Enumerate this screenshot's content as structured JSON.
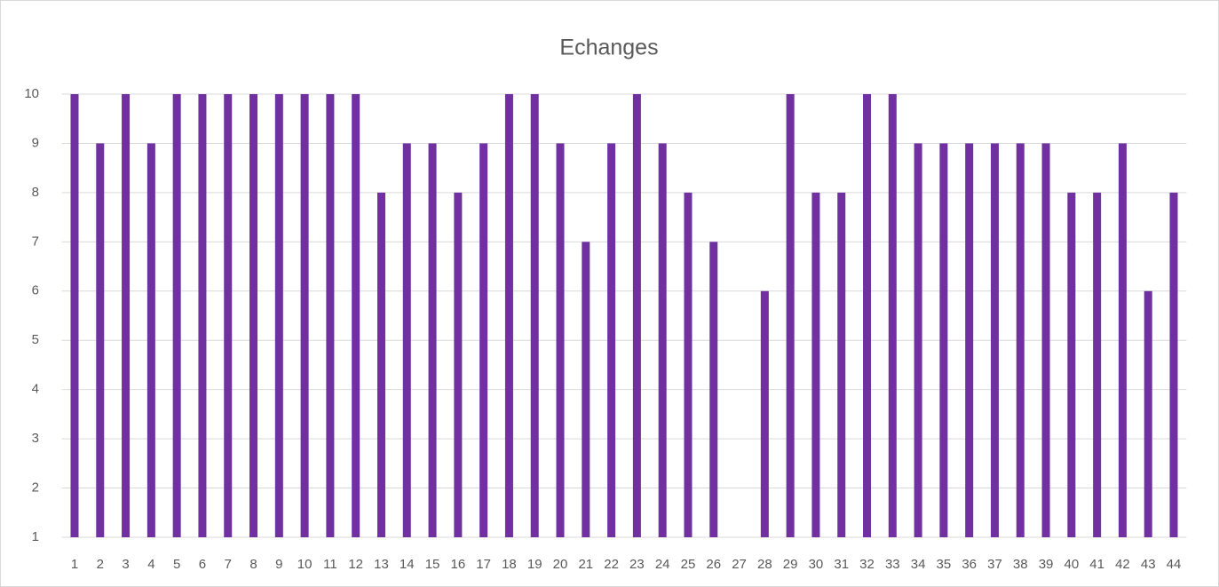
{
  "chart_data": {
    "type": "bar",
    "title": "Echanges",
    "categories": [
      1,
      2,
      3,
      4,
      5,
      6,
      7,
      8,
      9,
      10,
      11,
      12,
      13,
      14,
      15,
      16,
      17,
      18,
      19,
      20,
      21,
      22,
      23,
      24,
      25,
      26,
      27,
      28,
      29,
      30,
      31,
      32,
      33,
      34,
      35,
      36,
      37,
      38,
      39,
      40,
      41,
      42,
      43,
      44
    ],
    "values": [
      10,
      9,
      10,
      9,
      10,
      10,
      10,
      10,
      10,
      10,
      10,
      10,
      8,
      9,
      9,
      8,
      9,
      10,
      10,
      9,
      7,
      9,
      10,
      9,
      8,
      7,
      null,
      6,
      10,
      8,
      8,
      10,
      10,
      9,
      9,
      9,
      9,
      9,
      9,
      8,
      8,
      9,
      6,
      8
    ],
    "color": "#7030a0",
    "ylim": [
      1,
      10
    ],
    "yticks": [
      1,
      2,
      3,
      4,
      5,
      6,
      7,
      8,
      9,
      10
    ],
    "grid": true
  }
}
